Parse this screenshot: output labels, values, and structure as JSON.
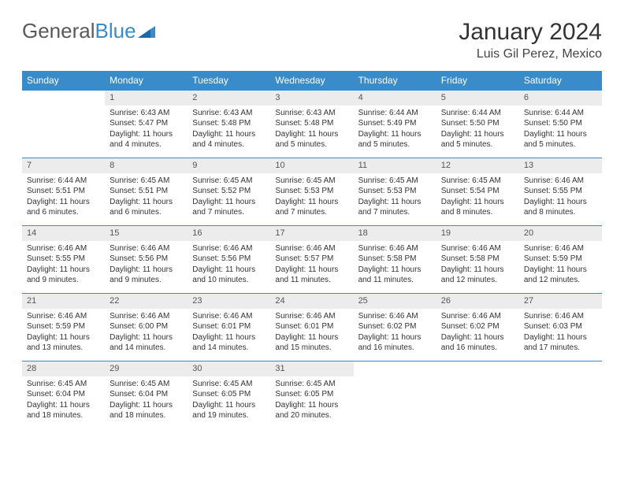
{
  "logo": {
    "text1": "General",
    "text2": "Blue"
  },
  "title": "January 2024",
  "location": "Luis Gil Perez, Mexico",
  "colors": {
    "header_bg": "#3a8bc9",
    "header_text": "#ffffff",
    "daynum_bg": "#ececec",
    "border": "#3a8bc9",
    "body_text": "#333333"
  },
  "weekdays": [
    "Sunday",
    "Monday",
    "Tuesday",
    "Wednesday",
    "Thursday",
    "Friday",
    "Saturday"
  ],
  "weeks": [
    [
      {
        "empty": true
      },
      {
        "num": "1",
        "sunrise": "Sunrise: 6:43 AM",
        "sunset": "Sunset: 5:47 PM",
        "daylight": "Daylight: 11 hours and 4 minutes."
      },
      {
        "num": "2",
        "sunrise": "Sunrise: 6:43 AM",
        "sunset": "Sunset: 5:48 PM",
        "daylight": "Daylight: 11 hours and 4 minutes."
      },
      {
        "num": "3",
        "sunrise": "Sunrise: 6:43 AM",
        "sunset": "Sunset: 5:48 PM",
        "daylight": "Daylight: 11 hours and 5 minutes."
      },
      {
        "num": "4",
        "sunrise": "Sunrise: 6:44 AM",
        "sunset": "Sunset: 5:49 PM",
        "daylight": "Daylight: 11 hours and 5 minutes."
      },
      {
        "num": "5",
        "sunrise": "Sunrise: 6:44 AM",
        "sunset": "Sunset: 5:50 PM",
        "daylight": "Daylight: 11 hours and 5 minutes."
      },
      {
        "num": "6",
        "sunrise": "Sunrise: 6:44 AM",
        "sunset": "Sunset: 5:50 PM",
        "daylight": "Daylight: 11 hours and 5 minutes."
      }
    ],
    [
      {
        "num": "7",
        "sunrise": "Sunrise: 6:44 AM",
        "sunset": "Sunset: 5:51 PM",
        "daylight": "Daylight: 11 hours and 6 minutes."
      },
      {
        "num": "8",
        "sunrise": "Sunrise: 6:45 AM",
        "sunset": "Sunset: 5:51 PM",
        "daylight": "Daylight: 11 hours and 6 minutes."
      },
      {
        "num": "9",
        "sunrise": "Sunrise: 6:45 AM",
        "sunset": "Sunset: 5:52 PM",
        "daylight": "Daylight: 11 hours and 7 minutes."
      },
      {
        "num": "10",
        "sunrise": "Sunrise: 6:45 AM",
        "sunset": "Sunset: 5:53 PM",
        "daylight": "Daylight: 11 hours and 7 minutes."
      },
      {
        "num": "11",
        "sunrise": "Sunrise: 6:45 AM",
        "sunset": "Sunset: 5:53 PM",
        "daylight": "Daylight: 11 hours and 7 minutes."
      },
      {
        "num": "12",
        "sunrise": "Sunrise: 6:45 AM",
        "sunset": "Sunset: 5:54 PM",
        "daylight": "Daylight: 11 hours and 8 minutes."
      },
      {
        "num": "13",
        "sunrise": "Sunrise: 6:46 AM",
        "sunset": "Sunset: 5:55 PM",
        "daylight": "Daylight: 11 hours and 8 minutes."
      }
    ],
    [
      {
        "num": "14",
        "sunrise": "Sunrise: 6:46 AM",
        "sunset": "Sunset: 5:55 PM",
        "daylight": "Daylight: 11 hours and 9 minutes."
      },
      {
        "num": "15",
        "sunrise": "Sunrise: 6:46 AM",
        "sunset": "Sunset: 5:56 PM",
        "daylight": "Daylight: 11 hours and 9 minutes."
      },
      {
        "num": "16",
        "sunrise": "Sunrise: 6:46 AM",
        "sunset": "Sunset: 5:56 PM",
        "daylight": "Daylight: 11 hours and 10 minutes."
      },
      {
        "num": "17",
        "sunrise": "Sunrise: 6:46 AM",
        "sunset": "Sunset: 5:57 PM",
        "daylight": "Daylight: 11 hours and 11 minutes."
      },
      {
        "num": "18",
        "sunrise": "Sunrise: 6:46 AM",
        "sunset": "Sunset: 5:58 PM",
        "daylight": "Daylight: 11 hours and 11 minutes."
      },
      {
        "num": "19",
        "sunrise": "Sunrise: 6:46 AM",
        "sunset": "Sunset: 5:58 PM",
        "daylight": "Daylight: 11 hours and 12 minutes."
      },
      {
        "num": "20",
        "sunrise": "Sunrise: 6:46 AM",
        "sunset": "Sunset: 5:59 PM",
        "daylight": "Daylight: 11 hours and 12 minutes."
      }
    ],
    [
      {
        "num": "21",
        "sunrise": "Sunrise: 6:46 AM",
        "sunset": "Sunset: 5:59 PM",
        "daylight": "Daylight: 11 hours and 13 minutes."
      },
      {
        "num": "22",
        "sunrise": "Sunrise: 6:46 AM",
        "sunset": "Sunset: 6:00 PM",
        "daylight": "Daylight: 11 hours and 14 minutes."
      },
      {
        "num": "23",
        "sunrise": "Sunrise: 6:46 AM",
        "sunset": "Sunset: 6:01 PM",
        "daylight": "Daylight: 11 hours and 14 minutes."
      },
      {
        "num": "24",
        "sunrise": "Sunrise: 6:46 AM",
        "sunset": "Sunset: 6:01 PM",
        "daylight": "Daylight: 11 hours and 15 minutes."
      },
      {
        "num": "25",
        "sunrise": "Sunrise: 6:46 AM",
        "sunset": "Sunset: 6:02 PM",
        "daylight": "Daylight: 11 hours and 16 minutes."
      },
      {
        "num": "26",
        "sunrise": "Sunrise: 6:46 AM",
        "sunset": "Sunset: 6:02 PM",
        "daylight": "Daylight: 11 hours and 16 minutes."
      },
      {
        "num": "27",
        "sunrise": "Sunrise: 6:46 AM",
        "sunset": "Sunset: 6:03 PM",
        "daylight": "Daylight: 11 hours and 17 minutes."
      }
    ],
    [
      {
        "num": "28",
        "sunrise": "Sunrise: 6:45 AM",
        "sunset": "Sunset: 6:04 PM",
        "daylight": "Daylight: 11 hours and 18 minutes."
      },
      {
        "num": "29",
        "sunrise": "Sunrise: 6:45 AM",
        "sunset": "Sunset: 6:04 PM",
        "daylight": "Daylight: 11 hours and 18 minutes."
      },
      {
        "num": "30",
        "sunrise": "Sunrise: 6:45 AM",
        "sunset": "Sunset: 6:05 PM",
        "daylight": "Daylight: 11 hours and 19 minutes."
      },
      {
        "num": "31",
        "sunrise": "Sunrise: 6:45 AM",
        "sunset": "Sunset: 6:05 PM",
        "daylight": "Daylight: 11 hours and 20 minutes."
      },
      {
        "empty": true
      },
      {
        "empty": true
      },
      {
        "empty": true
      }
    ]
  ]
}
